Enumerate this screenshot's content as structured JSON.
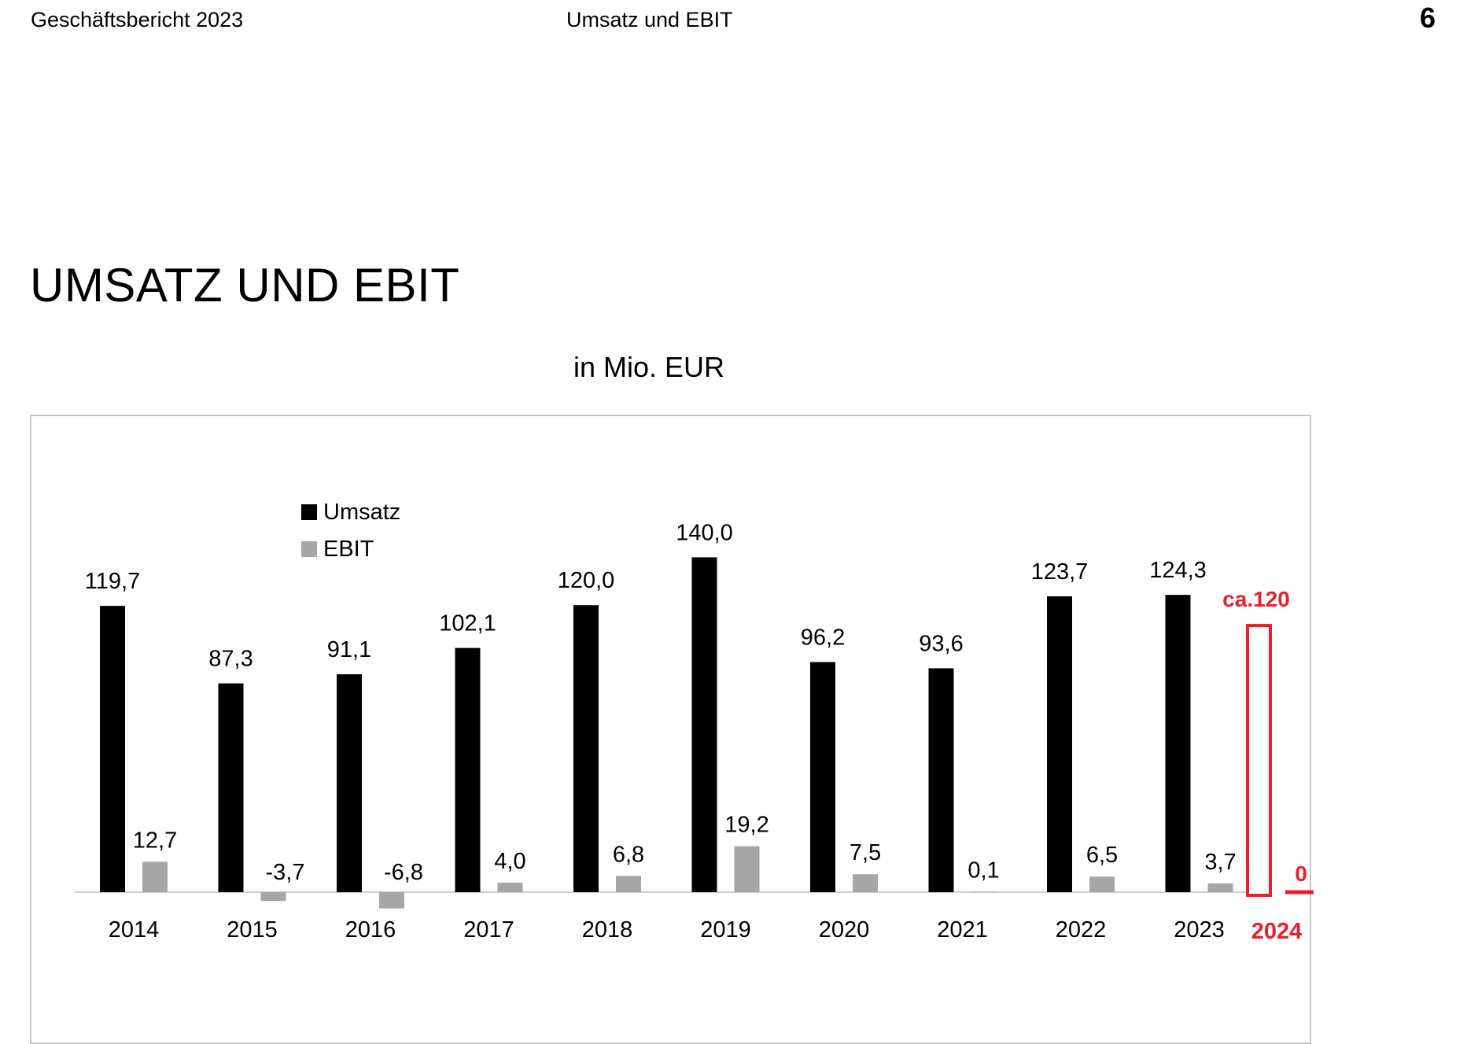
{
  "header": {
    "left": "Geschäftsbericht 2023",
    "center": "Umsatz und EBIT",
    "page_number": "6"
  },
  "title": "UMSATZ UND EBIT",
  "chart_data": {
    "type": "bar",
    "subtitle": "in Mio. EUR",
    "categories": [
      "2014",
      "2015",
      "2016",
      "2017",
      "2018",
      "2019",
      "2020",
      "2021",
      "2022",
      "2023"
    ],
    "series": [
      {
        "name": "Umsatz",
        "color": "#000000",
        "values": [
          119.7,
          87.3,
          91.1,
          102.1,
          120.0,
          140.0,
          96.2,
          93.6,
          123.7,
          124.3
        ],
        "labels": [
          "119,7",
          "87,3",
          "91,1",
          "102,1",
          "120,0",
          "140,0",
          "96,2",
          "93,6",
          "123,7",
          "124,3"
        ]
      },
      {
        "name": "EBIT",
        "color": "#a6a6a6",
        "values": [
          12.7,
          -3.7,
          -6.8,
          4.0,
          6.8,
          19.2,
          7.5,
          0.1,
          6.5,
          3.7
        ],
        "labels": [
          "12,7",
          "-3,7",
          "-6,8",
          "4,0",
          "6,8",
          "19,2",
          "7,5",
          "0,1",
          "6,5",
          "3,7"
        ]
      }
    ],
    "legend": {
      "position": "top-left",
      "items": [
        "Umsatz",
        "EBIT"
      ]
    },
    "annotation": {
      "category": "2024",
      "umsatz_value": 120,
      "umsatz_label": "ca.120",
      "ebit_value": 0,
      "ebit_label": "0",
      "color": "#e8202a"
    },
    "grid": false
  }
}
